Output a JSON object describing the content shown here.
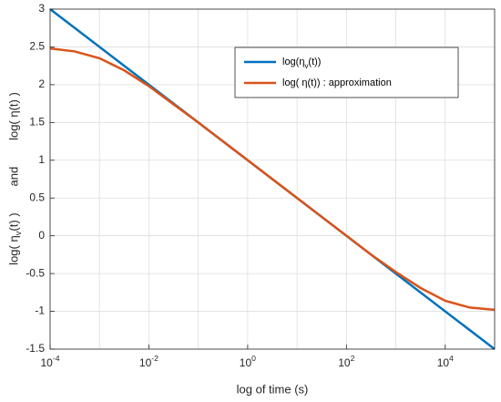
{
  "chart_data": {
    "type": "line",
    "xlabel": "log of time (s)",
    "ylabel": "log( η_v(t) )        and        log( η(t) )",
    "xscale": "log",
    "xlim": [
      0.0001,
      100000
    ],
    "xticks": [
      {
        "value": 0.0001,
        "label": "10^-4"
      },
      {
        "value": 0.01,
        "label": "10^-2"
      },
      {
        "value": 1,
        "label": "10^0"
      },
      {
        "value": 100,
        "label": "10^2"
      },
      {
        "value": 10000,
        "label": "10^4"
      }
    ],
    "ylim": [
      -1.5,
      3
    ],
    "yticks": [
      -1.5,
      -1,
      -0.5,
      0,
      0.5,
      1,
      1.5,
      2,
      2.5,
      3
    ],
    "grid": true,
    "legend": "upper right",
    "series": [
      {
        "name": "log(η_v(t))",
        "color": "#0072bd",
        "x": [
          0.0001,
          100000
        ],
        "values": [
          3,
          -1.5
        ]
      },
      {
        "name": "log( η(t)) : approximation",
        "color": "#d95319",
        "x": [
          0.0001,
          0.000316,
          0.001,
          0.00316,
          0.01,
          0.0316,
          0.1,
          0.316,
          1,
          3.16,
          10,
          31.6,
          100,
          316,
          1000,
          3160,
          10000,
          31600,
          100000
        ],
        "values": [
          2.48,
          2.44,
          2.35,
          2.19,
          1.98,
          1.74,
          1.5,
          1.25,
          1.0,
          0.75,
          0.5,
          0.25,
          0.0,
          -0.25,
          -0.48,
          -0.69,
          -0.86,
          -0.95,
          -0.98
        ]
      }
    ]
  }
}
